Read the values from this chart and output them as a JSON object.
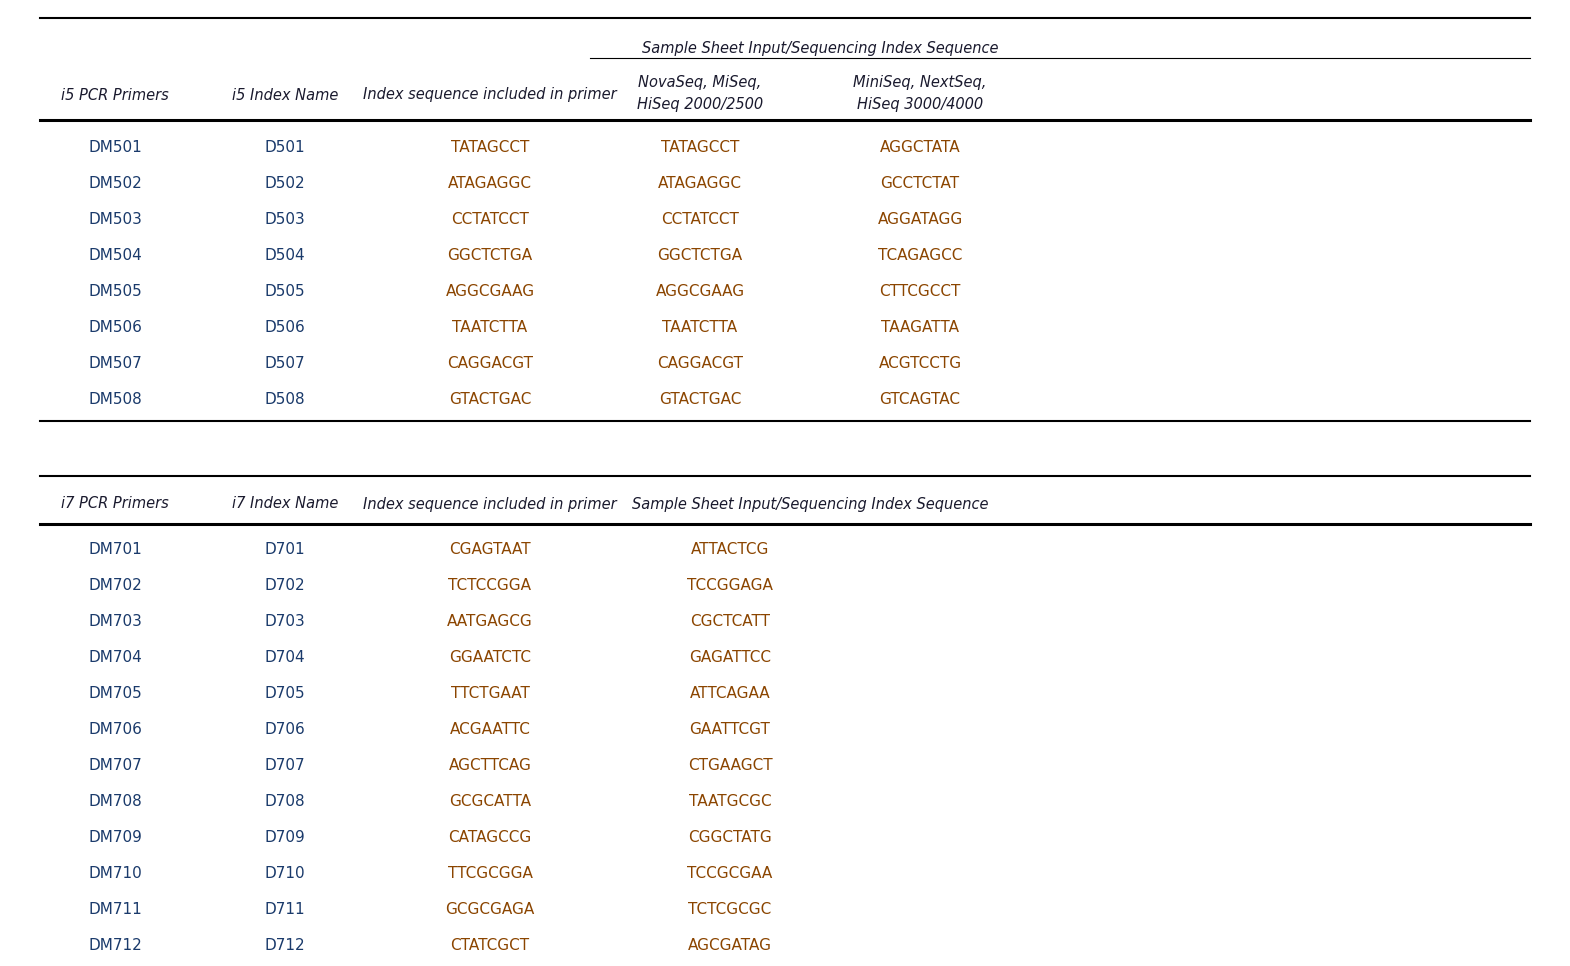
{
  "bg_color": "#ffffff",
  "header_color": "#1a1a2e",
  "data_name_color": "#1a3a6b",
  "seq_color": "#8B4500",
  "font_size": 11,
  "font_size_header": 10.5,
  "font_size_subheader": 10.5,
  "i5_subheader": "Sample Sheet Input/Sequencing Index Sequence",
  "i5_col0_header": "i5 PCR Primers",
  "i5_col1_header": "i5 Index Name",
  "i5_col2_header": "Index sequence included in primer",
  "i5_col3a_header": "NovaSeq, MiSeq,",
  "i5_col3b_header": "HiSeq 2000/2500",
  "i5_col4a_header": "MiniSeq, NextSeq,",
  "i5_col4b_header": "HiSeq 3000/4000",
  "i5_data": [
    [
      "DM501",
      "D501",
      "TATAGCCT",
      "TATAGCCT",
      "AGGCTATA"
    ],
    [
      "DM502",
      "D502",
      "ATAGAGGC",
      "ATAGAGGC",
      "GCCTCTAT"
    ],
    [
      "DM503",
      "D503",
      "CCTATCCT",
      "CCTATCCT",
      "AGGATAGG"
    ],
    [
      "DM504",
      "D504",
      "GGCTCTGA",
      "GGCTCTGA",
      "TCAGAGCC"
    ],
    [
      "DM505",
      "D505",
      "AGGCGAAG",
      "AGGCGAAG",
      "CTTCGCCT"
    ],
    [
      "DM506",
      "D506",
      "TAATCTTA",
      "TAATCTTA",
      "TAAGATTA"
    ],
    [
      "DM507",
      "D507",
      "CAGGACGT",
      "CAGGACGT",
      "ACGTCCTG"
    ],
    [
      "DM508",
      "D508",
      "GTACTGAC",
      "GTACTGAC",
      "GTCAGTAC"
    ]
  ],
  "i7_col0_header": "i7 PCR Primers",
  "i7_col1_header": "i7 Index Name",
  "i7_col2_header": "Index sequence included in primer",
  "i7_col3_header": "Sample Sheet Input/Sequencing Index Sequence",
  "i7_data": [
    [
      "DM701",
      "D701",
      "CGAGTAAT",
      "ATTACTCG"
    ],
    [
      "DM702",
      "D702",
      "TCTCCGGA",
      "TCCGGAGA"
    ],
    [
      "DM703",
      "D703",
      "AATGAGCG",
      "CGCTCATT"
    ],
    [
      "DM704",
      "D704",
      "GGAATCTC",
      "GAGATTCC"
    ],
    [
      "DM705",
      "D705",
      "TTCTGAAT",
      "ATTCAGAA"
    ],
    [
      "DM706",
      "D706",
      "ACGAATTC",
      "GAATTCGT"
    ],
    [
      "DM707",
      "D707",
      "AGCTTCAG",
      "CTGAAGCT"
    ],
    [
      "DM708",
      "D708",
      "GCGCATTA",
      "TAATGCGC"
    ],
    [
      "DM709",
      "D709",
      "CATAGCCG",
      "CGGCTATG"
    ],
    [
      "DM710",
      "D710",
      "TTCGCGGA",
      "TCCGCGAA"
    ],
    [
      "DM711",
      "D711",
      "GCGCGAGA",
      "TCTCGCGC"
    ],
    [
      "DM712",
      "D712",
      "CTATCGCT",
      "AGCGATAG"
    ]
  ]
}
